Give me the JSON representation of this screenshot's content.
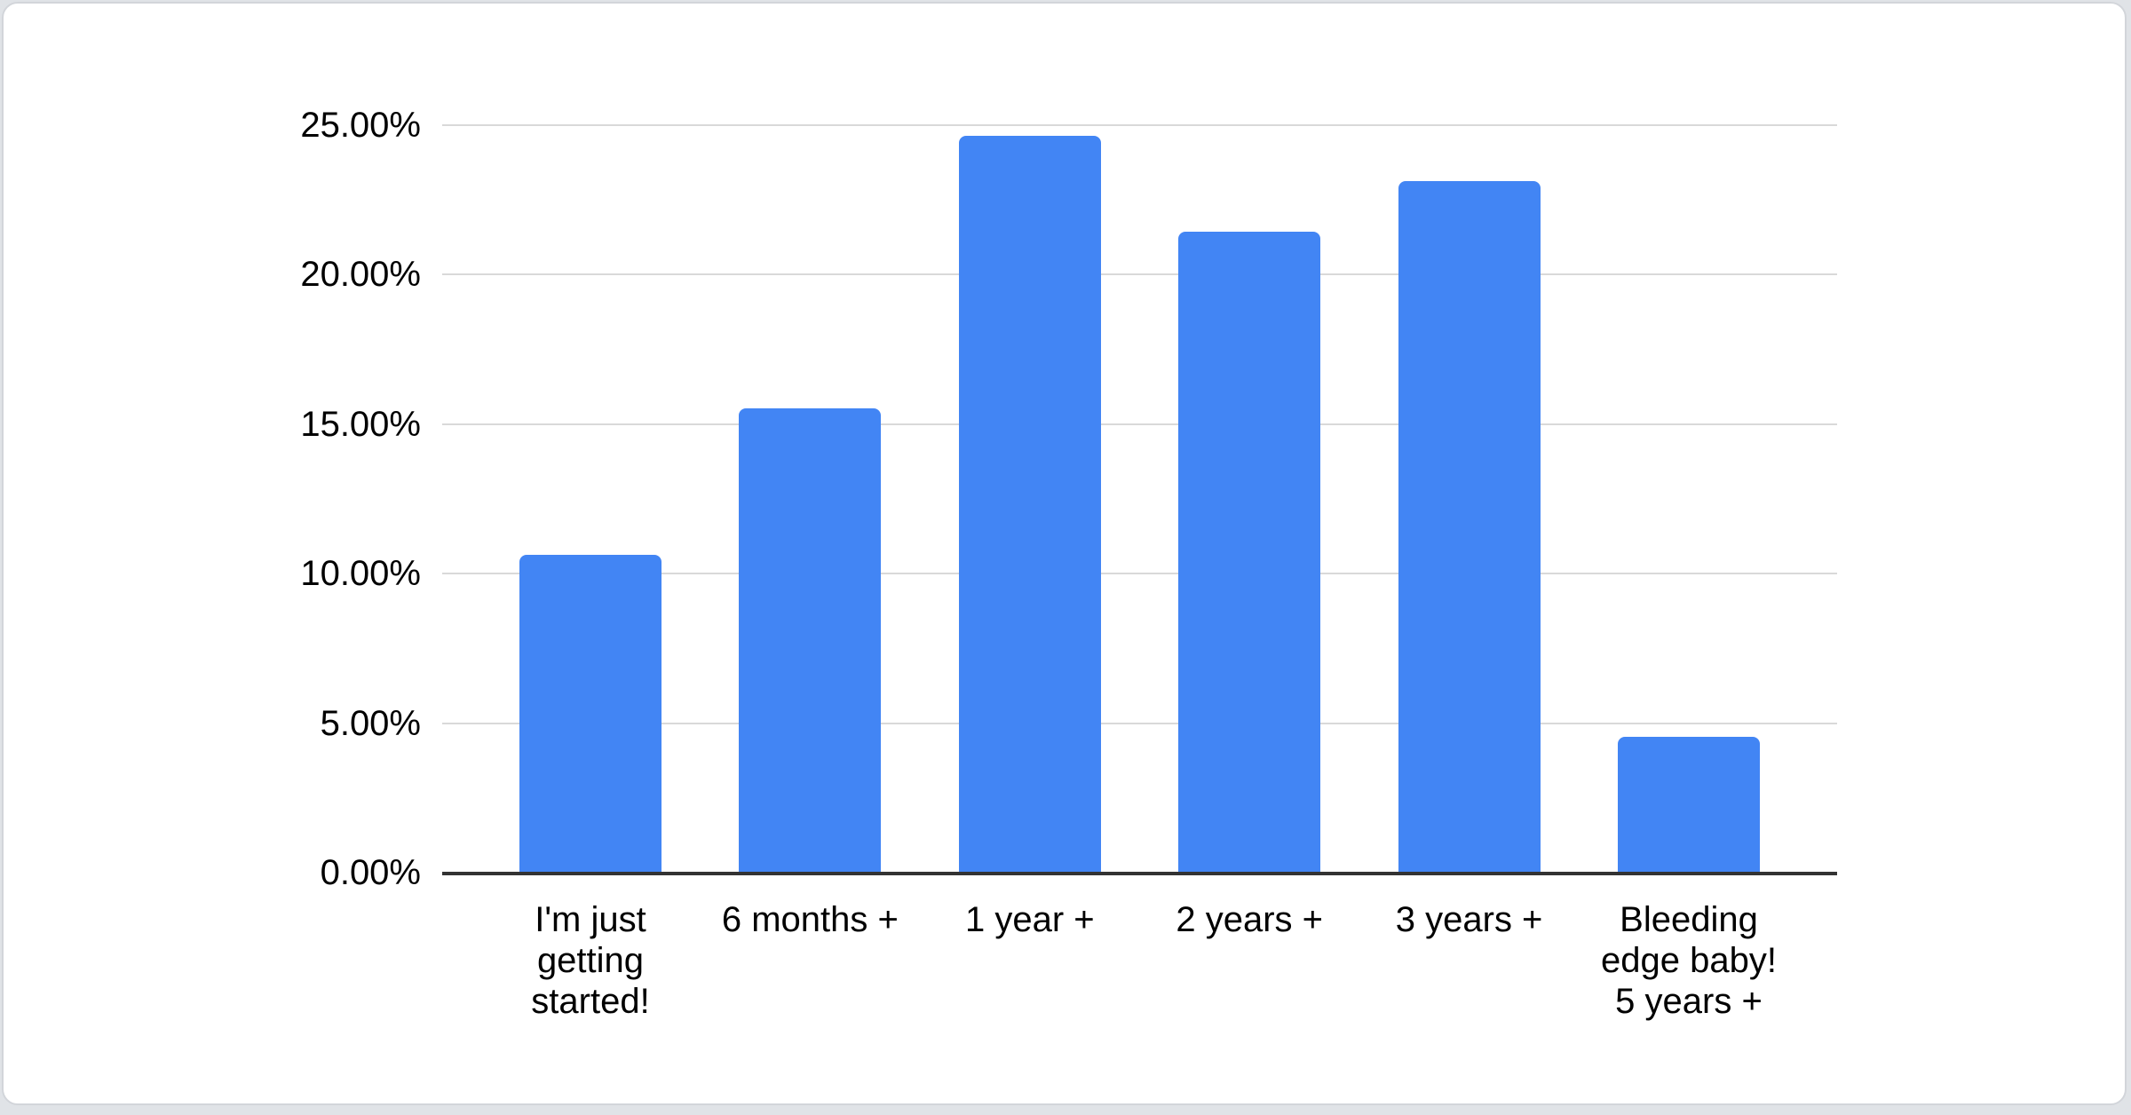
{
  "chart_data": {
    "type": "bar",
    "title": "",
    "xlabel": "",
    "ylabel": "",
    "categories": [
      "I'm just getting started!",
      "6 months +",
      "1 year +",
      "2 years +",
      "3 years +",
      "Bleeding edge baby! 5 years +"
    ],
    "values": [
      10.6,
      15.5,
      24.6,
      21.4,
      23.1,
      4.5
    ],
    "y_ticks": [
      {
        "value": 0,
        "label": "0.00%"
      },
      {
        "value": 5,
        "label": "5.00%"
      },
      {
        "value": 10,
        "label": "10.00%"
      },
      {
        "value": 15,
        "label": "15.00%"
      },
      {
        "value": 20,
        "label": "20.00%"
      },
      {
        "value": 25,
        "label": "25.00%"
      }
    ],
    "ylim": [
      0,
      25
    ],
    "grid": true,
    "legend": "none",
    "bar_color": "#4285f4"
  },
  "colors": {
    "bar": "#4285f4",
    "grid_line": "#d9d9d9",
    "axis_line": "#333333",
    "text": "#000000",
    "card_border": "#d2d5da",
    "page_background": "#e0e3e7",
    "card_background": "#ffffff"
  }
}
